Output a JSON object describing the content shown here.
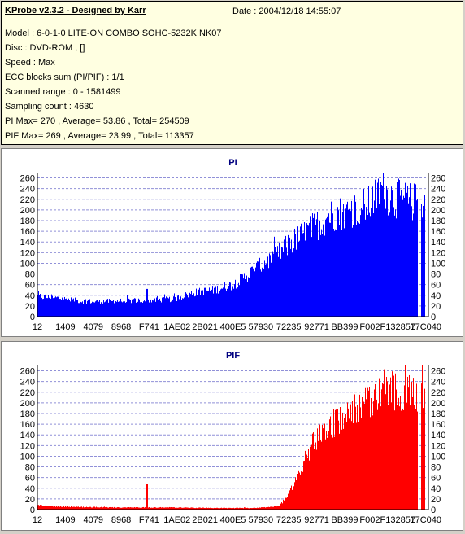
{
  "info": {
    "title": "KProbe v2.3.2 - Designed by Karr",
    "date": "Date : 2004/12/18 14:55:07",
    "lines": [
      "Model : 6-0-1-0 LITE-ON COMBO SOHC-5232K NK07",
      "Disc : DVD-ROM ,  []",
      "Speed : Max",
      "ECC blocks sum (PI/PIF) : 1/1",
      "Scanned range : 0 - 1581499",
      "Sampling count : 4630",
      "PI Max= 270 , Average= 53.86 , Total= 254509",
      "PIF Max= 269 , Average= 23.99 , Total= 113357"
    ]
  },
  "chart_data": [
    {
      "type": "bar",
      "title": "PI",
      "color": "#0000ff",
      "xlabel": "",
      "ylabel": "",
      "ylim": [
        0,
        270
      ],
      "yticks": [
        0,
        20,
        40,
        60,
        80,
        100,
        120,
        140,
        160,
        180,
        200,
        220,
        240,
        260
      ],
      "x_tick_labels": [
        "12",
        "1409",
        "4079",
        "8968",
        "F741",
        "1AE02",
        "2B021",
        "400E5",
        "57930",
        "72235",
        "92771",
        "BB399",
        "F002F",
        "132857",
        "17C040"
      ],
      "grid": true,
      "x": [
        0,
        0.05,
        0.1,
        0.15,
        0.2,
        0.25,
        0.3,
        0.35,
        0.4,
        0.45,
        0.5,
        0.55,
        0.6,
        0.62,
        0.65,
        0.7,
        0.75,
        0.8,
        0.85,
        0.88,
        0.9,
        0.95,
        1.0
      ],
      "values": [
        38,
        35,
        30,
        28,
        29,
        30,
        31,
        33,
        45,
        50,
        60,
        85,
        110,
        120,
        140,
        165,
        190,
        200,
        210,
        240,
        225,
        215,
        215
      ]
    },
    {
      "type": "bar",
      "title": "PIF",
      "color": "#ff0000",
      "xlabel": "",
      "ylabel": "",
      "ylim": [
        0,
        270
      ],
      "yticks": [
        0,
        20,
        40,
        60,
        80,
        100,
        120,
        140,
        160,
        180,
        200,
        220,
        240,
        260
      ],
      "x_tick_labels": [
        "12",
        "1409",
        "4079",
        "8968",
        "F741",
        "1AE02",
        "2B021",
        "400E5",
        "57930",
        "72235",
        "92771",
        "BB399",
        "F002F",
        "132857",
        "17C040"
      ],
      "grid": true,
      "x": [
        0,
        0.05,
        0.1,
        0.2,
        0.28,
        0.3,
        0.35,
        0.45,
        0.55,
        0.6,
        0.62,
        0.65,
        0.7,
        0.75,
        0.8,
        0.85,
        0.88,
        0.9,
        0.95,
        1.0
      ],
      "values": [
        8,
        6,
        5,
        4,
        4,
        4,
        4,
        3,
        3,
        5,
        8,
        40,
        120,
        160,
        180,
        200,
        230,
        225,
        215,
        215
      ]
    }
  ]
}
